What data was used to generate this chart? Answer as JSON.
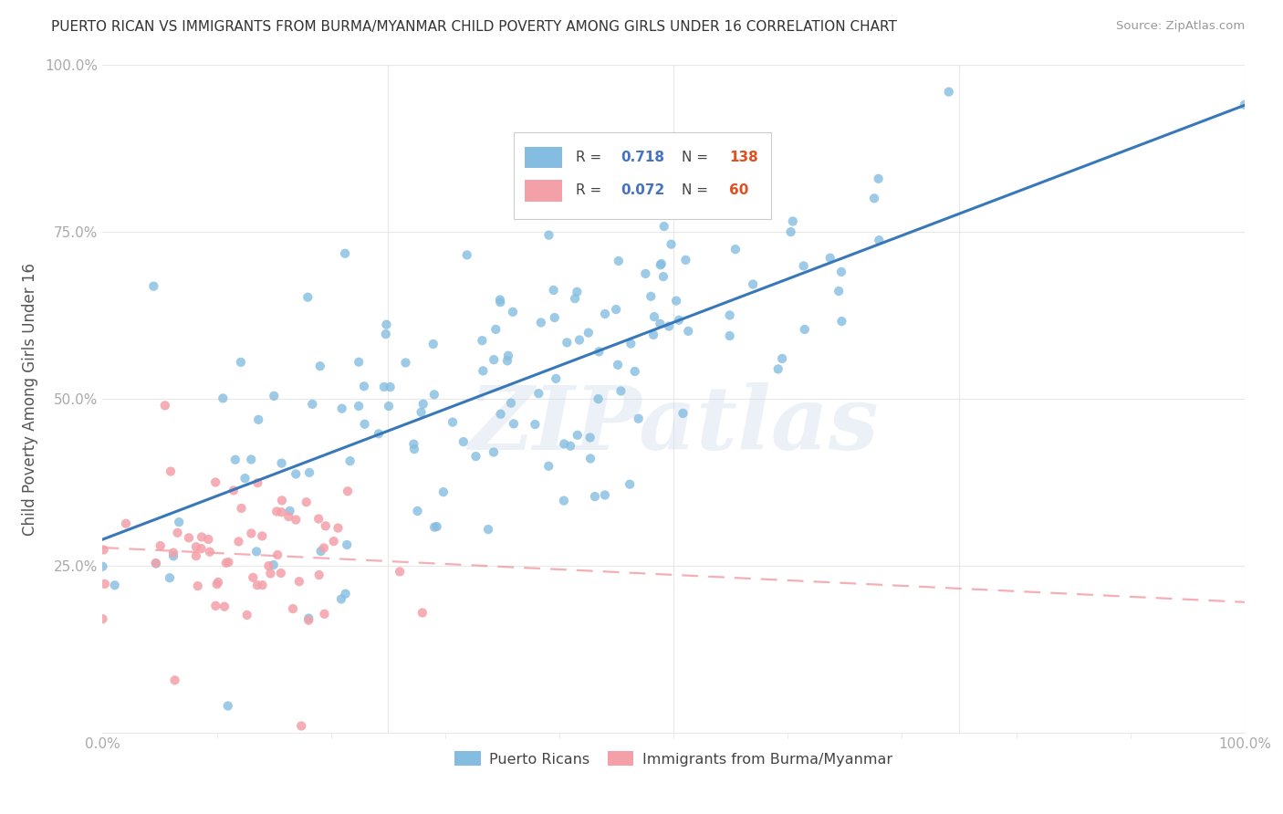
{
  "title": "PUERTO RICAN VS IMMIGRANTS FROM BURMA/MYANMAR CHILD POVERTY AMONG GIRLS UNDER 16 CORRELATION CHART",
  "source": "Source: ZipAtlas.com",
  "ylabel": "Child Poverty Among Girls Under 16",
  "watermark": "ZIPatlas",
  "blue_R": 0.718,
  "blue_N": 138,
  "pink_R": 0.072,
  "pink_N": 60,
  "blue_color": "#85bde0",
  "pink_color": "#f4a0a8",
  "blue_line_color": "#3878b8",
  "pink_line_color": "#f4a0a8",
  "legend_label_blue": "Puerto Ricans",
  "legend_label_pink": "Immigrants from Burma/Myanmar",
  "background_color": "#ffffff",
  "grid_color": "#e8e8e8",
  "title_color": "#333333",
  "source_color": "#999999",
  "tick_color": "#aaaaaa",
  "ylabel_color": "#555555"
}
